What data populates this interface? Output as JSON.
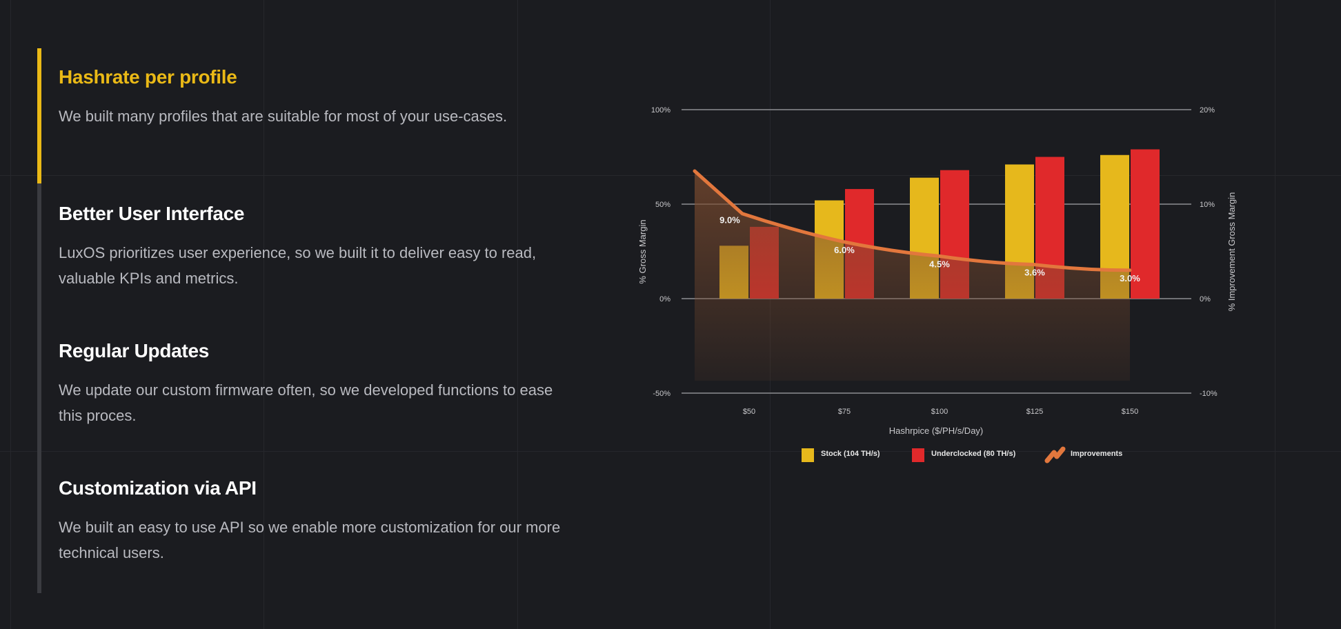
{
  "features": [
    {
      "title": "Hashrate per profile",
      "body": "We built many profiles that are suitable for most of your use-cases.",
      "active": true
    },
    {
      "title": "Better User Interface",
      "body": "LuxOS prioritizes user experience, so we built it to deliver easy to read, valuable KPIs and metrics.",
      "active": false
    },
    {
      "title": "Regular Updates",
      "body": "We update our custom firmware often, so we developed functions to ease this proces.",
      "active": false
    },
    {
      "title": "Customization via API",
      "body": "We built an easy to use API so we enable more customization for our more technical users.",
      "active": false
    }
  ],
  "colors": {
    "accent": "#eab916",
    "stock": "#e6b81c",
    "underclocked": "#e0292b",
    "improvements": "#e2773d"
  },
  "chart_data": {
    "type": "bar",
    "title": "",
    "xlabel": "Hashrpice ($/PH/s/Day)",
    "ylabel": "% Gross Margin",
    "y2label": "% Improvement Gross Margin",
    "categories": [
      "$50",
      "$75",
      "$100",
      "$125",
      "$150"
    ],
    "ylim": [
      -50,
      100
    ],
    "yticks": [
      "100%",
      "50%",
      "0%",
      "-50%"
    ],
    "yticks_values": [
      100,
      50,
      0,
      -50
    ],
    "y2lim": [
      -10,
      20
    ],
    "y2ticks": [
      "20%",
      "10%",
      "0%",
      "-10%"
    ],
    "y2ticks_values": [
      20,
      10,
      0,
      -10
    ],
    "series": [
      {
        "name": "Stock (104 TH/s)",
        "type": "bar",
        "axis": "left",
        "values": [
          28,
          52,
          64,
          71,
          76
        ]
      },
      {
        "name": "Underclocked (80 TH/s)",
        "type": "bar",
        "axis": "right_of_pair",
        "values": [
          38,
          58,
          68,
          75,
          79
        ]
      },
      {
        "name": "Improvements",
        "type": "line",
        "axis": "right",
        "start_value": 13.5,
        "values": [
          9.0,
          6.0,
          4.5,
          3.6,
          3.0
        ],
        "labels": [
          "9.0%",
          "6.0%",
          "4.5%",
          "3.6%",
          "3.0%"
        ]
      }
    ],
    "legend": "bottom",
    "grid": true
  }
}
